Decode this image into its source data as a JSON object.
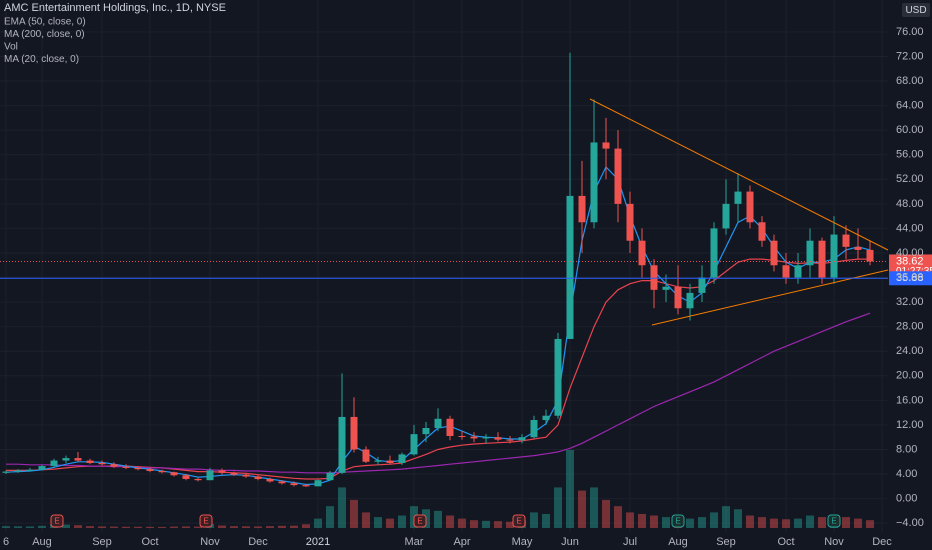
{
  "chart_data": {
    "type": "candlestick",
    "title": "AMC Entertainment Holdings, Inc., 1D, NYSE",
    "currency": "USD",
    "categories": [
      "6",
      null,
      null,
      "Aug",
      null,
      null,
      null,
      null,
      "Sep",
      null,
      null,
      null,
      "Oct",
      null,
      null,
      null,
      null,
      "Nov",
      null,
      null,
      null,
      "Dec",
      null,
      null,
      null,
      null,
      "2021",
      null,
      null,
      null,
      null,
      null,
      null,
      null,
      "Mar",
      null,
      null,
      null,
      "Apr",
      null,
      null,
      null,
      null,
      "May",
      null,
      null,
      null,
      "Jun",
      null,
      null,
      null,
      null,
      "Jul",
      null,
      null,
      null,
      "Aug",
      null,
      null,
      null,
      "Sep",
      null,
      null,
      null,
      null,
      "Oct",
      null,
      null,
      null,
      "Nov",
      null,
      null,
      null,
      "Dec"
    ],
    "open": [
      4.2,
      4.4,
      4.6,
      4.7,
      5.3,
      6.2,
      6.6,
      6.2,
      5.8,
      5.6,
      5.2,
      5.0,
      4.8,
      4.5,
      4.3,
      3.8,
      3.2,
      3.0,
      4.6,
      4.2,
      3.9,
      3.6,
      3.2,
      2.8,
      2.5,
      2.2,
      2.0,
      3.0,
      4.2,
      13.3,
      8.0,
      6.0,
      6.2,
      5.8,
      7.2,
      10.5,
      11.5,
      13.0,
      10.2,
      10.1,
      9.8,
      10.0,
      9.6,
      9.5,
      10.0,
      12.8,
      13.5,
      26.0,
      49.3,
      45.0,
      58.0,
      57.0,
      48,
      42,
      38,
      34,
      34.5,
      31,
      33.5,
      36,
      44,
      48,
      50,
      45,
      42,
      38,
      36,
      38,
      42,
      36,
      43,
      41,
      40.5,
      null
    ],
    "high": [
      4.6,
      4.8,
      5.0,
      5.5,
      6.5,
      7.0,
      7.6,
      6.5,
      6.2,
      5.9,
      5.6,
      5.3,
      5.0,
      4.7,
      4.4,
      4.0,
      3.4,
      5.0,
      4.9,
      4.4,
      4.1,
      3.8,
      3.4,
      3.0,
      2.8,
      2.4,
      3.1,
      4.5,
      20.4,
      16.5,
      8.5,
      6.8,
      7.0,
      7.5,
      12.0,
      12.5,
      14.7,
      13.5,
      11.0,
      10.8,
      10.5,
      10.8,
      10.2,
      10.5,
      13.5,
      14.5,
      27.0,
      72.6,
      55,
      65,
      62,
      60,
      50,
      44,
      39,
      36.5,
      38,
      35,
      38,
      45,
      52,
      53,
      51,
      46,
      43,
      40,
      40,
      44,
      42.5,
      46,
      44.5,
      44,
      42,
      null
    ],
    "low": [
      4.0,
      4.2,
      4.4,
      4.6,
      5.2,
      5.8,
      6.0,
      5.6,
      5.4,
      5.0,
      4.8,
      4.6,
      4.3,
      4.1,
      3.6,
      3.0,
      2.8,
      3.0,
      3.9,
      3.7,
      3.4,
      3.0,
      2.6,
      2.3,
      2.0,
      1.9,
      2.0,
      2.9,
      4.0,
      7.5,
      5.8,
      5.5,
      5.6,
      5.5,
      7.0,
      9.2,
      11.0,
      9.5,
      9.6,
      9.2,
      9.0,
      9.3,
      9.0,
      9.0,
      9.8,
      12.0,
      13.0,
      26,
      40,
      44,
      52,
      45,
      40,
      36,
      31,
      32,
      30,
      29,
      32,
      35,
      43,
      45,
      44,
      41,
      37,
      35,
      35,
      36,
      35,
      35,
      39,
      39,
      38,
      null
    ],
    "close": [
      4.4,
      4.6,
      4.7,
      5.3,
      6.2,
      6.6,
      6.2,
      5.8,
      5.6,
      5.2,
      5.0,
      4.8,
      4.5,
      4.3,
      3.8,
      3.2,
      3.0,
      4.6,
      4.2,
      3.9,
      3.6,
      3.2,
      2.8,
      2.5,
      2.2,
      2.0,
      3.0,
      4.2,
      13.3,
      8.0,
      6.0,
      6.2,
      5.8,
      7.2,
      10.5,
      11.5,
      13.0,
      10.2,
      10.1,
      9.8,
      10.0,
      9.6,
      9.5,
      10.0,
      12.8,
      13.5,
      26.0,
      49.3,
      45,
      58,
      57,
      48,
      42,
      38,
      34,
      34.5,
      31,
      33.5,
      36,
      44,
      48,
      50,
      45,
      42,
      38,
      36,
      38,
      42,
      36,
      43,
      41,
      40.5,
      38.62,
      null
    ],
    "up_color": "#26a69a",
    "down_color": "#ef5350",
    "series": [
      {
        "name": "EMA (50, close, 0)",
        "color": "#e8434f",
        "values": [
          4.6,
          4.6,
          4.6,
          4.7,
          4.8,
          5.0,
          5.2,
          5.3,
          5.3,
          5.3,
          5.3,
          5.2,
          5.1,
          5.0,
          4.8,
          4.6,
          4.4,
          4.4,
          4.3,
          4.2,
          4.1,
          3.9,
          3.7,
          3.5,
          3.3,
          3.2,
          3.2,
          3.3,
          4.5,
          5.2,
          5.4,
          5.5,
          5.6,
          5.8,
          6.5,
          7.2,
          8.0,
          8.4,
          8.7,
          8.9,
          9.0,
          9.1,
          9.2,
          9.4,
          9.7,
          10.0,
          12.0,
          18.0,
          23.0,
          28.0,
          32.0,
          34.0,
          35.0,
          35.5,
          35.5,
          35.0,
          34.5,
          34.3,
          34.5,
          35.5,
          37.0,
          38.5,
          39.0,
          39.0,
          38.8,
          38.5,
          38.3,
          38.4,
          38.3,
          38.5,
          38.8,
          39.0,
          39.0,
          null
        ]
      },
      {
        "name": "MA (200, close, 0)",
        "color": "#9c27b0",
        "values": [
          5.6,
          5.6,
          5.5,
          5.5,
          5.5,
          5.4,
          5.4,
          5.3,
          5.3,
          5.2,
          5.2,
          5.1,
          5.0,
          5.0,
          4.9,
          4.8,
          4.8,
          4.7,
          4.6,
          4.6,
          4.5,
          4.5,
          4.4,
          4.3,
          4.3,
          4.2,
          4.2,
          4.2,
          4.3,
          4.4,
          4.5,
          4.6,
          4.7,
          4.8,
          5.0,
          5.2,
          5.4,
          5.6,
          5.8,
          6.0,
          6.2,
          6.4,
          6.6,
          6.8,
          7.0,
          7.3,
          7.6,
          8.2,
          9.0,
          10.0,
          11.0,
          12.0,
          13.0,
          14.0,
          15.0,
          15.8,
          16.6,
          17.4,
          18.2,
          19.0,
          20.0,
          21.0,
          22.0,
          23.0,
          24.0,
          24.8,
          25.6,
          26.4,
          27.2,
          28.0,
          28.8,
          29.5,
          30.2,
          null
        ]
      },
      {
        "name": "MA (20, close, 0)",
        "color": "#2196f3",
        "values": [
          4.3,
          4.4,
          4.5,
          4.7,
          5.1,
          5.6,
          6.0,
          6.0,
          5.9,
          5.6,
          5.3,
          5.0,
          4.8,
          4.5,
          4.2,
          3.9,
          3.5,
          3.6,
          3.8,
          3.9,
          3.8,
          3.5,
          3.2,
          2.9,
          2.6,
          2.3,
          2.4,
          3.0,
          6.0,
          8.5,
          7.5,
          6.2,
          6.0,
          6.2,
          8.0,
          9.8,
          11.5,
          11.8,
          11.0,
          10.2,
          10.0,
          9.9,
          9.7,
          9.7,
          10.8,
          12.2,
          16.0,
          30.0,
          42.0,
          50.0,
          54.0,
          52.0,
          46.0,
          41.0,
          37.0,
          35.0,
          33.0,
          32.0,
          33.5,
          37.0,
          41.0,
          45.0,
          46.0,
          44.0,
          41.0,
          38.5,
          37.5,
          38.5,
          38.5,
          39.0,
          40.5,
          41.0,
          40.5,
          null
        ]
      }
    ],
    "volume": {
      "name": "Vol",
      "values": [
        60,
        55,
        50,
        70,
        120,
        110,
        90,
        60,
        50,
        45,
        40,
        40,
        38,
        35,
        45,
        50,
        45,
        130,
        80,
        60,
        55,
        50,
        60,
        70,
        75,
        120,
        300,
        700,
        1300,
        900,
        500,
        350,
        300,
        400,
        700,
        600,
        550,
        400,
        300,
        250,
        230,
        220,
        200,
        250,
        500,
        450,
        1300,
        2500,
        1200,
        1300,
        900,
        700,
        500,
        450,
        400,
        350,
        400,
        300,
        350,
        500,
        700,
        600,
        400,
        350,
        300,
        280,
        300,
        400,
        350,
        400,
        350,
        300,
        250,
        null
      ]
    },
    "ylim": [
      -5.6,
      81.2
    ],
    "yticks": [
      {
        "value": -4,
        "label": "−4.00"
      },
      {
        "value": 0,
        "label": "0.00"
      },
      {
        "value": 4,
        "label": "4.00"
      },
      {
        "value": 8,
        "label": "8.00"
      },
      {
        "value": 12,
        "label": "12.00"
      },
      {
        "value": 16,
        "label": "16.00"
      },
      {
        "value": 20,
        "label": "20.00"
      },
      {
        "value": 24,
        "label": "24.00"
      },
      {
        "value": 28,
        "label": "28.00"
      },
      {
        "value": 32,
        "label": "32.00"
      },
      {
        "value": 36,
        "label": "36.00"
      },
      {
        "value": 40,
        "label": "40.00"
      },
      {
        "value": 44,
        "label": "44.00"
      },
      {
        "value": 48,
        "label": "48.00"
      },
      {
        "value": 52,
        "label": "52.00"
      },
      {
        "value": 56,
        "label": "56.00"
      },
      {
        "value": 60,
        "label": "60.00"
      },
      {
        "value": 64,
        "label": "64.00"
      },
      {
        "value": 68,
        "label": "68.00"
      },
      {
        "value": 72,
        "label": "72.00"
      },
      {
        "value": 76,
        "label": "76.00"
      }
    ],
    "grid": true,
    "last_price": 38.62,
    "countdown": "01:27:35",
    "price_line": 35.88,
    "events": [
      "E",
      "E",
      "E",
      "E",
      "E",
      "E"
    ]
  }
}
